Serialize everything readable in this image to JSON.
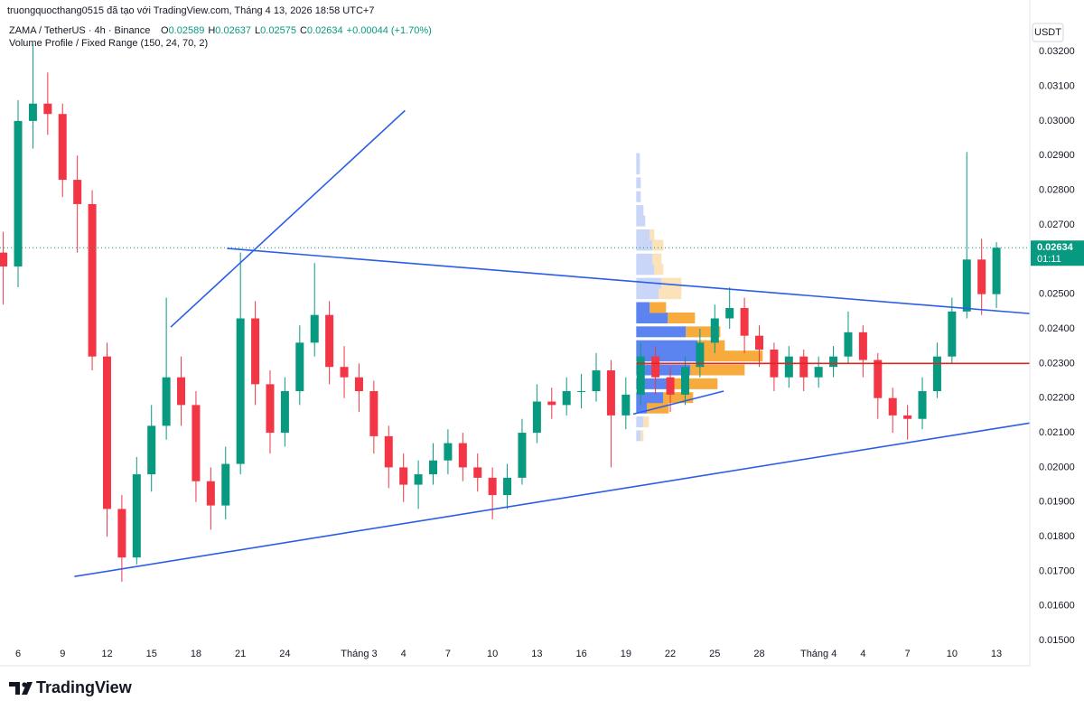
{
  "header": {
    "author_note": "truongquocthang0515 đã tạo với TradingView.com, Tháng 4 13, 2026 18:58 UTC+7",
    "brand": "TradingView"
  },
  "legend": {
    "symbol": "ZAMA / TetherUS · 4h · Binance",
    "ohlc_labels": [
      "O",
      "H",
      "L",
      "C"
    ],
    "open": 0.02589,
    "high": 0.02637,
    "low": 0.02575,
    "close": 0.02634,
    "change": "+0.00044 (+1.70%)",
    "indicator": "Volume Profile / Fixed Range (150, 24, 70, 2)"
  },
  "chart_data": {
    "type": "candlestick",
    "currency": "USDT",
    "countdown": "01:11",
    "up_color": "#089981",
    "down_color": "#f23645",
    "grid": false,
    "x": [
      -1,
      0,
      1,
      2,
      3,
      4,
      5,
      6,
      7,
      8,
      9,
      10,
      11,
      12,
      13,
      14,
      15,
      16,
      17,
      18,
      19,
      20,
      21,
      22,
      23,
      24,
      25,
      26,
      27,
      28,
      29,
      30,
      31,
      32,
      33,
      34,
      35,
      36,
      37,
      38,
      39,
      40,
      41,
      42,
      43,
      44,
      45,
      46,
      47,
      48,
      49,
      50,
      51,
      52,
      53,
      54,
      55,
      56,
      57,
      58,
      59,
      60,
      61,
      62,
      63,
      64,
      65,
      66
    ],
    "open": [
      0.0262,
      0.0258,
      0.03,
      0.0305,
      0.0302,
      0.0283,
      0.0276,
      0.0232,
      0.0188,
      0.0174,
      0.0198,
      0.0212,
      0.0226,
      0.0218,
      0.0196,
      0.0189,
      0.0201,
      0.0243,
      0.0224,
      0.021,
      0.0222,
      0.0236,
      0.0244,
      0.0229,
      0.0226,
      0.0222,
      0.0209,
      0.02,
      0.0195,
      0.0198,
      0.0202,
      0.0207,
      0.02,
      0.0197,
      0.0192,
      0.0197,
      0.021,
      0.0219,
      0.0218,
      0.0222,
      0.0222,
      0.0228,
      0.0215,
      0.0221,
      0.0232,
      0.0226,
      0.0221,
      0.0229,
      0.0236,
      0.0243,
      0.0246,
      0.0238,
      0.0234,
      0.0226,
      0.0232,
      0.0226,
      0.0229,
      0.0232,
      0.0239,
      0.0231,
      0.022,
      0.0215,
      0.0214,
      0.0222,
      0.0232,
      0.0245,
      0.026,
      0.025
    ],
    "high": [
      0.0268,
      0.0306,
      0.0322,
      0.0314,
      0.0305,
      0.029,
      0.028,
      0.0236,
      0.0192,
      0.0203,
      0.0218,
      0.0249,
      0.0232,
      0.0222,
      0.02,
      0.0206,
      0.0262,
      0.0248,
      0.0228,
      0.0226,
      0.0241,
      0.0259,
      0.0248,
      0.0235,
      0.023,
      0.0225,
      0.0212,
      0.0204,
      0.0202,
      0.0207,
      0.0211,
      0.021,
      0.0204,
      0.02,
      0.0201,
      0.0214,
      0.0224,
      0.0223,
      0.0226,
      0.0227,
      0.0233,
      0.0231,
      0.0226,
      0.0236,
      0.0235,
      0.0229,
      0.0232,
      0.024,
      0.0247,
      0.0252,
      0.0249,
      0.0241,
      0.0236,
      0.0235,
      0.0234,
      0.0232,
      0.0235,
      0.0245,
      0.0241,
      0.0233,
      0.0223,
      0.0218,
      0.0226,
      0.0236,
      0.0249,
      0.0291,
      0.0266,
      0.0265
    ],
    "low": [
      0.0247,
      0.0252,
      0.0292,
      0.0296,
      0.0278,
      0.0262,
      0.0228,
      0.018,
      0.0167,
      0.0172,
      0.0193,
      0.0208,
      0.0212,
      0.019,
      0.0182,
      0.0185,
      0.0198,
      0.0218,
      0.0204,
      0.0206,
      0.0218,
      0.0232,
      0.0224,
      0.022,
      0.0216,
      0.0204,
      0.0194,
      0.019,
      0.0188,
      0.0195,
      0.0198,
      0.0196,
      0.0193,
      0.0185,
      0.0188,
      0.0195,
      0.0207,
      0.0214,
      0.0215,
      0.0217,
      0.0219,
      0.02,
      0.0211,
      0.0218,
      0.0221,
      0.0216,
      0.0218,
      0.0226,
      0.0233,
      0.024,
      0.0233,
      0.0229,
      0.0222,
      0.0223,
      0.0222,
      0.0223,
      0.0226,
      0.023,
      0.0226,
      0.0214,
      0.021,
      0.0208,
      0.0211,
      0.022,
      0.023,
      0.0243,
      0.0244,
      0.0246
    ],
    "close": [
      0.0258,
      0.03,
      0.0305,
      0.0302,
      0.0283,
      0.0276,
      0.0232,
      0.0188,
      0.0174,
      0.0198,
      0.0212,
      0.0226,
      0.0218,
      0.0196,
      0.0189,
      0.0201,
      0.0243,
      0.0224,
      0.021,
      0.0222,
      0.0236,
      0.0244,
      0.0229,
      0.0226,
      0.0222,
      0.0209,
      0.02,
      0.0195,
      0.0198,
      0.0202,
      0.0207,
      0.02,
      0.0197,
      0.0192,
      0.0197,
      0.021,
      0.0219,
      0.0218,
      0.0222,
      0.0222,
      0.0228,
      0.0215,
      0.0221,
      0.0232,
      0.0226,
      0.0221,
      0.0229,
      0.0236,
      0.0243,
      0.0246,
      0.0238,
      0.0234,
      0.0226,
      0.0232,
      0.0226,
      0.0229,
      0.0232,
      0.0239,
      0.0231,
      0.022,
      0.0215,
      0.0214,
      0.0222,
      0.0232,
      0.0245,
      0.026,
      0.025,
      0.02634
    ],
    "xlim": [
      -1.22,
      68.25
    ],
    "xticks": [
      {
        "value": 0,
        "label": "6"
      },
      {
        "value": 3,
        "label": "9"
      },
      {
        "value": 6,
        "label": "12"
      },
      {
        "value": 9,
        "label": "15"
      },
      {
        "value": 12,
        "label": "18"
      },
      {
        "value": 15,
        "label": "21"
      },
      {
        "value": 18,
        "label": "24"
      },
      {
        "value": 23,
        "label": "Tháng 3"
      },
      {
        "value": 26,
        "label": "4"
      },
      {
        "value": 29,
        "label": "7"
      },
      {
        "value": 32,
        "label": "10"
      },
      {
        "value": 35,
        "label": "13"
      },
      {
        "value": 38,
        "label": "16"
      },
      {
        "value": 41,
        "label": "19"
      },
      {
        "value": 44,
        "label": "22"
      },
      {
        "value": 47,
        "label": "25"
      },
      {
        "value": 50,
        "label": "28"
      },
      {
        "value": 54,
        "label": "Tháng 4"
      },
      {
        "value": 57,
        "label": "4"
      },
      {
        "value": 60,
        "label": "7"
      },
      {
        "value": 63,
        "label": "10"
      },
      {
        "value": 66,
        "label": "13"
      }
    ],
    "ylim": [
      0.0149,
      0.0331
    ],
    "yticks": [
      {
        "value": 0.015,
        "label": "0.01500"
      },
      {
        "value": 0.016,
        "label": "0.01600"
      },
      {
        "value": 0.017,
        "label": "0.01700"
      },
      {
        "value": 0.018,
        "label": "0.01800"
      },
      {
        "value": 0.019,
        "label": "0.01900"
      },
      {
        "value": 0.02,
        "label": "0.02000"
      },
      {
        "value": 0.021,
        "label": "0.02100"
      },
      {
        "value": 0.022,
        "label": "0.02200"
      },
      {
        "value": 0.023,
        "label": "0.02300"
      },
      {
        "value": 0.024,
        "label": "0.02400"
      },
      {
        "value": 0.025,
        "label": "0.02500"
      },
      {
        "value": 0.026,
        "label": "0.02600"
      },
      {
        "value": 0.027,
        "label": "0.02700"
      },
      {
        "value": 0.028,
        "label": "0.02800"
      },
      {
        "value": 0.029,
        "label": "0.02900"
      },
      {
        "value": 0.03,
        "label": "0.03000"
      },
      {
        "value": 0.031,
        "label": "0.03100"
      },
      {
        "value": 0.032,
        "label": "0.03200"
      }
    ],
    "volume_profile": {
      "start_x": 41.7,
      "prices": [
        0.0209,
        0.0213,
        0.0217,
        0.022,
        0.0224,
        0.0228,
        0.0232,
        0.0235,
        0.0239,
        0.0243,
        0.0246,
        0.025,
        0.0253,
        0.0257,
        0.026,
        0.0264,
        0.0267,
        0.0271,
        0.0274,
        0.0278,
        0.0282,
        0.0286,
        0.0289
      ],
      "up": [
        5,
        8,
        12,
        30,
        35,
        60,
        70,
        68,
        55,
        35,
        15,
        25,
        28,
        20,
        18,
        18,
        15,
        10,
        8,
        5,
        5,
        4,
        4
      ],
      "down": [
        3,
        6,
        24,
        33,
        55,
        60,
        70,
        30,
        38,
        30,
        18,
        25,
        22,
        10,
        10,
        12,
        5,
        0,
        0,
        0,
        0,
        0,
        0
      ],
      "up_colors": [
        "#c9d6f8",
        "#c9d6f8",
        "#5b84f1",
        "#5b84f1",
        "#5b84f1",
        "#5b84f1",
        "#5b84f1",
        "#5b84f1",
        "#5b84f1",
        "#5b84f1",
        "#5b84f1",
        "#c9d6f8",
        "#c9d6f8",
        "#c9d6f8",
        "#c9d6f8",
        "#c9d6f8",
        "#c9d6f8",
        "#c9d6f8",
        "#c9d6f8",
        "#c9d6f8",
        "#c9d6f8",
        "#c9d6f8",
        "#c9d6f8"
      ],
      "down_colors": [
        "#fbe2b8",
        "#fbe2b8",
        "#f6ab3c",
        "#f6ab3c",
        "#f6ab3c",
        "#f6ab3c",
        "#f6ab3c",
        "#f6ab3c",
        "#f6ab3c",
        "#f6ab3c",
        "#f6ab3c",
        "#fbe2b8",
        "#fbe2b8",
        "#fbe2b8",
        "#fbe2b8",
        "#fbe2b8",
        "#fbe2b8",
        "#fbe2b8",
        "#fbe2b8",
        "#fbe2b8",
        "#fbe2b8",
        "#fbe2b8",
        "#fbe2b8"
      ]
    },
    "drawings": [
      {
        "x": [
          10.3,
          26.1
        ],
        "y": [
          0.02405,
          0.0303
        ],
        "color": "#2a5ee8"
      },
      {
        "x": [
          14.1,
          68.25
        ],
        "y": [
          0.02632,
          0.02444
        ],
        "color": "#2a5ee8"
      },
      {
        "x": [
          3.8,
          68.25
        ],
        "y": [
          0.01685,
          0.02128
        ],
        "color": "#2a5ee8"
      },
      {
        "x": [
          41.5,
          47.6
        ],
        "y": [
          0.02154,
          0.0222
        ],
        "color": "#2a5ee8"
      },
      {
        "x": [
          41.7,
          68.25
        ],
        "y": [
          0.023,
          0.023
        ],
        "color": "#e0261f"
      }
    ]
  }
}
